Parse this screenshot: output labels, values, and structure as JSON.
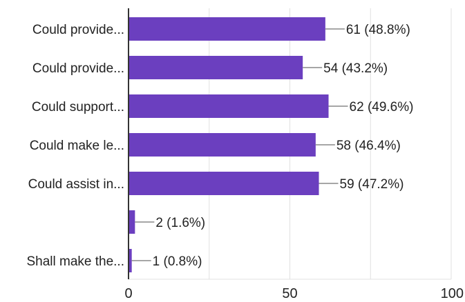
{
  "chart_data": {
    "type": "bar",
    "orientation": "horizontal",
    "categories": [
      "Could provide...",
      "Could provide...",
      "Could support...",
      "Could make le...",
      "Could assist in...",
      "",
      "Shall make the..."
    ],
    "values": [
      61,
      54,
      62,
      58,
      59,
      2,
      1
    ],
    "data_labels": [
      "61 (48.8%)",
      "54 (43.2%)",
      "62 (49.6%)",
      "58 (46.4%)",
      "59 (47.2%)",
      "2 (1.6%)",
      "1 (0.8%)"
    ],
    "xlim": [
      0,
      100
    ],
    "x_ticks": [
      0,
      50,
      100
    ],
    "x_tick_labels": [
      "0",
      "50",
      "100"
    ],
    "grid": true,
    "colors": {
      "bar": "#6b3fbf",
      "grid": "#e0e0e0",
      "axis": "#333333",
      "leader": "#888888"
    }
  }
}
